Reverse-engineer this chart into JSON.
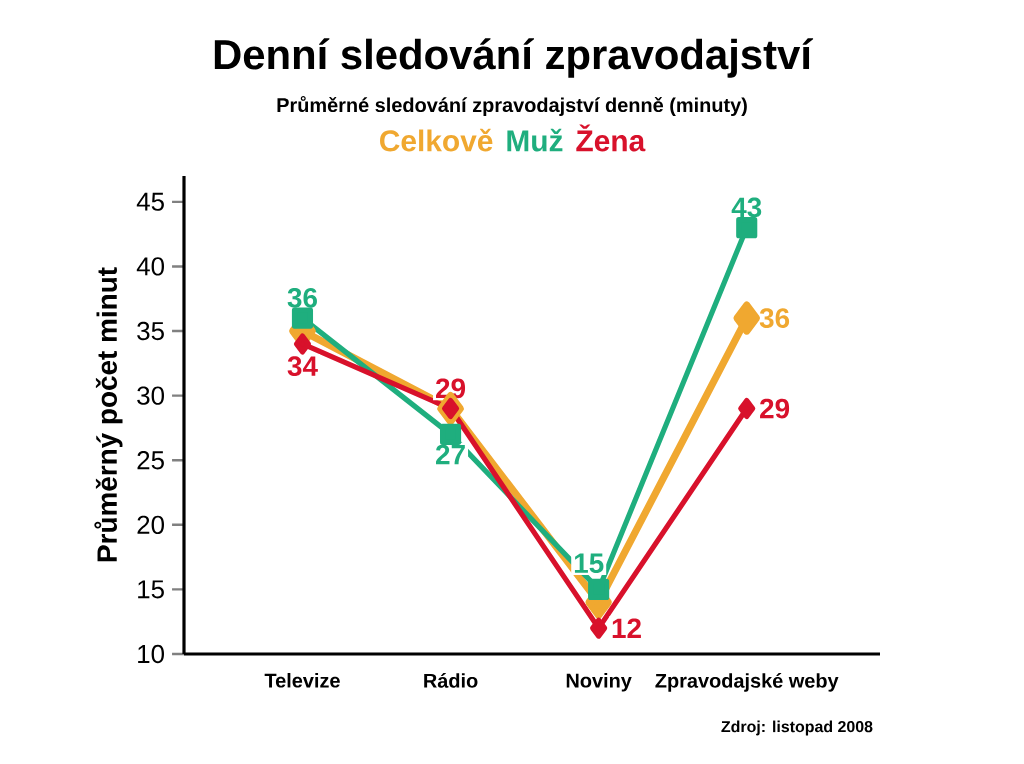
{
  "chart_data": {
    "type": "line",
    "title": "Denní sledování zpravodajství",
    "subtitle": "Průměrné sledování zpravodajství denně (minuty)",
    "ylabel": "Průměrný počet minut",
    "categories": [
      "Televize",
      "Rádio",
      "Noviny",
      "Zpravodajské weby"
    ],
    "series": [
      {
        "name": "Celkově",
        "color": "#f0a830",
        "marker": "diamond",
        "values": [
          35,
          29,
          14,
          36
        ],
        "value_labels": [
          null,
          null,
          null,
          "36"
        ]
      },
      {
        "name": "Muž",
        "color": "#1fae7e",
        "marker": "square",
        "values": [
          36,
          27,
          15,
          43
        ],
        "value_labels": [
          "36",
          "27",
          "15",
          "43"
        ]
      },
      {
        "name": "Žena",
        "color": "#d8112b",
        "marker": "diamond",
        "values": [
          34,
          29,
          12,
          29
        ],
        "value_labels": [
          "34",
          "29",
          "12",
          "29"
        ]
      }
    ],
    "ylim": [
      10,
      47
    ],
    "yticks": [
      10,
      15,
      20,
      25,
      30,
      35,
      40,
      45
    ],
    "grid": false,
    "legend": "top",
    "annotations": [
      "Zdroj: listopad 2008"
    ]
  }
}
